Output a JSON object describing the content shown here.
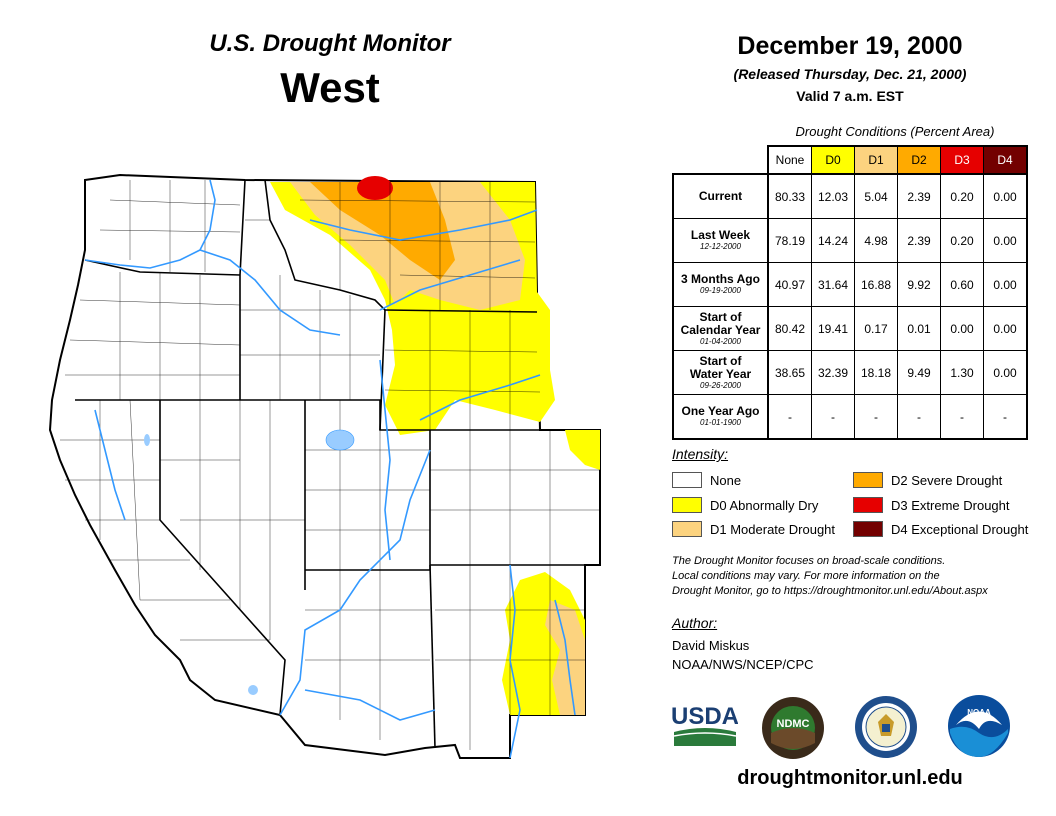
{
  "header": {
    "title": "U.S. Drought Monitor",
    "region": "West",
    "date": "December 19, 2000",
    "released": "(Released Thursday, Dec. 21, 2000)",
    "valid": "Valid 7 a.m. EST"
  },
  "table": {
    "caption": "Drought Conditions (Percent Area)",
    "columns": [
      {
        "label": "None",
        "color": "#ffffff",
        "text_color": "#000000"
      },
      {
        "label": "D0",
        "color": "#ffff00",
        "text_color": "#000000"
      },
      {
        "label": "D1",
        "color": "#fcd37f",
        "text_color": "#000000"
      },
      {
        "label": "D2",
        "color": "#ffaa00",
        "text_color": "#000000"
      },
      {
        "label": "D3",
        "color": "#e60000",
        "text_color": "#ffffff"
      },
      {
        "label": "D4",
        "color": "#730000",
        "text_color": "#ffffff"
      }
    ],
    "rows": [
      {
        "label_lines": [
          "Current"
        ],
        "sub": "",
        "values": [
          "80.33",
          "12.03",
          "5.04",
          "2.39",
          "0.20",
          "0.00"
        ]
      },
      {
        "label_lines": [
          "Last Week"
        ],
        "sub": "12-12-2000",
        "values": [
          "78.19",
          "14.24",
          "4.98",
          "2.39",
          "0.20",
          "0.00"
        ]
      },
      {
        "label_lines": [
          "3 Months Ago"
        ],
        "sub": "09-19-2000",
        "values": [
          "40.97",
          "31.64",
          "16.88",
          "9.92",
          "0.60",
          "0.00"
        ]
      },
      {
        "label_lines": [
          "Start of",
          "Calendar Year"
        ],
        "sub": "01-04-2000",
        "values": [
          "80.42",
          "19.41",
          "0.17",
          "0.01",
          "0.00",
          "0.00"
        ]
      },
      {
        "label_lines": [
          "Start of",
          "Water Year"
        ],
        "sub": "09-26-2000",
        "values": [
          "38.65",
          "32.39",
          "18.18",
          "9.49",
          "1.30",
          "0.00"
        ]
      },
      {
        "label_lines": [
          "One Year Ago"
        ],
        "sub": "01-01-1900",
        "values": [
          "-",
          "-",
          "-",
          "-",
          "-",
          "-"
        ]
      }
    ]
  },
  "legend": {
    "title": "Intensity:",
    "items": [
      {
        "label": "None",
        "color": "#ffffff"
      },
      {
        "label": "D0 Abnormally Dry",
        "color": "#ffff00"
      },
      {
        "label": "D1 Moderate Drought",
        "color": "#fcd37f"
      },
      {
        "label": "D2 Severe Drought",
        "color": "#ffaa00"
      },
      {
        "label": "D3 Extreme Drought",
        "color": "#e60000"
      },
      {
        "label": "D4 Exceptional Drought",
        "color": "#730000"
      }
    ]
  },
  "note": {
    "lines": [
      "The Drought Monitor focuses on broad-scale conditions.",
      "Local conditions may vary. For more information on the",
      "Drought Monitor, go to https://droughtmonitor.unl.edu/About.aspx"
    ]
  },
  "author": {
    "title": "Author:",
    "name": "David Miskus",
    "org": "NOAA/NWS/NCEP/CPC"
  },
  "logos": {
    "usda": "USDA",
    "ndmc": "NDMC",
    "noaa": "NOAA"
  },
  "footer": {
    "url": "droughtmonitor.unl.edu"
  },
  "map": {
    "states": [
      "WA",
      "OR",
      "CA",
      "NV",
      "ID",
      "MT",
      "WY",
      "UT",
      "AZ",
      "CO",
      "NM"
    ],
    "colors": {
      "land": "#ffffff",
      "border": "#000000",
      "rivers": "#3399ff",
      "d0": "#ffff00",
      "d1": "#fcd37f",
      "d2": "#ffaa00",
      "d3": "#e60000"
    }
  }
}
